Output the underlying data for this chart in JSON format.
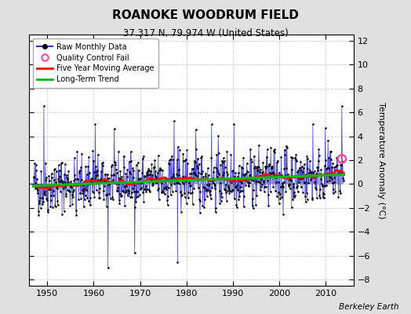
{
  "title": "ROANOKE WOODRUM FIELD",
  "subtitle": "37.317 N, 79.974 W (United States)",
  "ylabel": "Temperature Anomaly (°C)",
  "credit": "Berkeley Earth",
  "xlim": [
    1946,
    2016
  ],
  "ylim": [
    -8.5,
    12.5
  ],
  "yticks": [
    -8,
    -6,
    -4,
    -2,
    0,
    2,
    4,
    6,
    8,
    10,
    12
  ],
  "xticks": [
    1950,
    1960,
    1970,
    1980,
    1990,
    2000,
    2010
  ],
  "bg_color": "#e0e0e0",
  "plot_bg_color": "#ffffff",
  "raw_color": "#3333cc",
  "dot_color": "#000000",
  "ma_color": "#ff0000",
  "trend_color": "#00bb00",
  "qc_color": "#ff44aa",
  "seed": 42,
  "n_years": 67,
  "start_year": 1947,
  "trend_slope": 0.014,
  "trend_intercept": -0.15,
  "ma_window": 60,
  "qc_x": 2013.5,
  "qc_y": 2.1
}
